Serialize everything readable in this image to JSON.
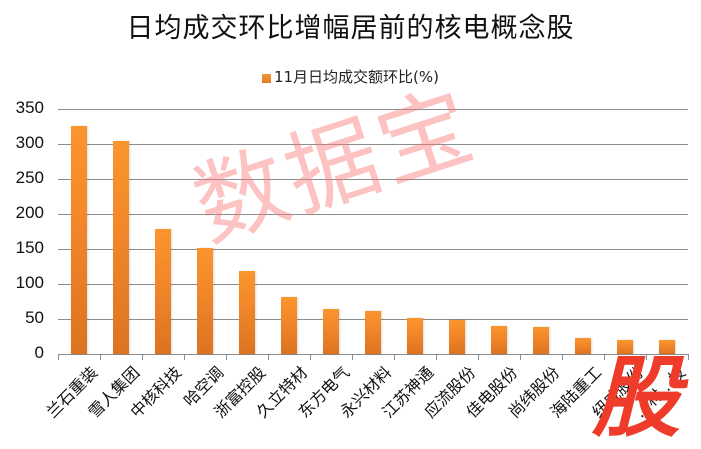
{
  "chart_data": {
    "type": "bar",
    "title": "日均成交环比增幅居前的核电概念股",
    "xlabel": "",
    "ylabel": "",
    "ylim": [
      0,
      350
    ],
    "yticks": [
      0,
      50,
      100,
      150,
      200,
      250,
      300,
      350
    ],
    "grid": true,
    "legend_position": "top",
    "categories": [
      "兰石重装",
      "雪人集团",
      "中核科技",
      "哈空调",
      "浙富控股",
      "久立特材",
      "东方电气",
      "永兴材料",
      "江苏神通",
      "应流股份",
      "佳电股份",
      "尚纬股份",
      "海陆重工",
      "纽威股份",
      "…材…技"
    ],
    "series": [
      {
        "name": "11月日均成交额环比(%)",
        "color": "#f28a2a",
        "values": [
          326,
          304,
          179,
          152,
          119,
          81,
          64,
          61,
          51,
          49,
          40,
          39,
          23,
          20,
          20
        ]
      }
    ]
  },
  "title": "日均成交环比增幅居前的核电概念股",
  "legend": {
    "label": "11月日均成交额环比(%)"
  },
  "yaxis": {
    "ticks": [
      "350",
      "300",
      "250",
      "200",
      "150",
      "100",
      "50",
      "0"
    ]
  },
  "watermark": "数据宝",
  "logo": "股"
}
